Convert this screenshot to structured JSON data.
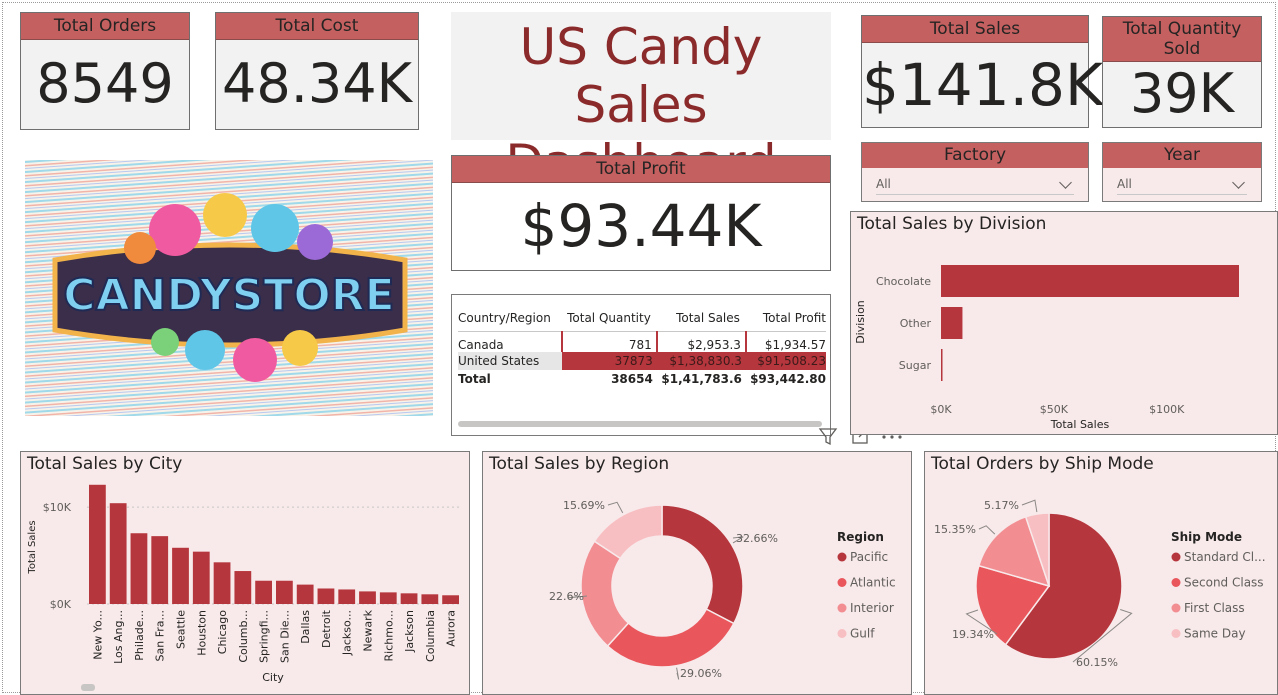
{
  "kpis": {
    "total_orders": {
      "label": "Total Orders",
      "value": "8549"
    },
    "total_cost": {
      "label": "Total Cost",
      "value": "48.34K"
    },
    "total_sales": {
      "label": "Total Sales",
      "value": "$141.8K"
    },
    "total_quantity": {
      "label": "Total Quantity Sold",
      "value": "39K"
    },
    "total_profit": {
      "label": "Total Profit",
      "value": "$93.44K"
    }
  },
  "title": {
    "line1": "US Candy Sales",
    "line2": "Dashboard"
  },
  "logo": {
    "text": "CANDYSTORE"
  },
  "slicers": {
    "factory": {
      "label": "Factory",
      "value": "All"
    },
    "year": {
      "label": "Year",
      "value": "All"
    }
  },
  "matrix": {
    "headers": [
      "Country/Region",
      "Total Quantity",
      "Total Sales",
      "Total Profit"
    ],
    "rows": [
      [
        "Canada",
        "781",
        "$2,953.3",
        "$1,934.57"
      ],
      [
        "United States",
        "37873",
        "$1,38,830.3",
        "$91,508.23"
      ]
    ],
    "total": [
      "Total",
      "38654",
      "$1,41,783.6",
      "$93,442.80"
    ]
  },
  "colors": {
    "dark": "#b5363c",
    "mid": "#e9575c",
    "light": "#f28d92",
    "pale": "#f8bfc2",
    "panel": "#f8e9ea",
    "header": "#c46060"
  },
  "chart_data": [
    {
      "id": "division",
      "type": "bar",
      "orientation": "horizontal",
      "title": "Total Sales by Division",
      "xlabel": "Total Sales",
      "ylabel": "Division",
      "categories": [
        "Chocolate",
        "Other",
        "Sugar"
      ],
      "values": [
        132000,
        9500,
        600
      ],
      "xlim": [
        0,
        132000
      ],
      "ticks": [
        {
          "v": 0,
          "label": "$0K"
        },
        {
          "v": 50000,
          "label": "$50K"
        },
        {
          "v": 100000,
          "label": "$100K"
        }
      ]
    },
    {
      "id": "city",
      "type": "bar",
      "title": "Total Sales by City",
      "xlabel": "City",
      "ylabel": "Total Sales",
      "categories": [
        "New Yo...",
        "Los Ang...",
        "Philade...",
        "San Fra...",
        "Seattle",
        "Houston",
        "Chicago",
        "Columb...",
        "Springfi...",
        "San Die...",
        "Dallas",
        "Detroit",
        "Jackso...",
        "Newark",
        "Richmo...",
        "Jackson",
        "Columbia",
        "Aurora"
      ],
      "values": [
        12300,
        10400,
        7300,
        7000,
        5800,
        5400,
        4300,
        3400,
        2400,
        2400,
        2000,
        1600,
        1500,
        1300,
        1200,
        1100,
        1000,
        900
      ],
      "ylim": [
        0,
        13000
      ],
      "ticks": [
        {
          "v": 0,
          "label": "$0K"
        },
        {
          "v": 10000,
          "label": "$10K"
        }
      ]
    },
    {
      "id": "region",
      "type": "pie",
      "donut": true,
      "title": "Total Sales by Region",
      "legend_title": "Region",
      "labels": [
        "Pacific",
        "Atlantic",
        "Interior",
        "Gulf"
      ],
      "values": [
        32.66,
        29.06,
        22.6,
        15.69
      ],
      "value_labels": [
        "32.66%",
        "29.06%",
        "22.6%",
        "15.69%"
      ],
      "colors": [
        "#b5363c",
        "#e9575c",
        "#f28d92",
        "#f8bfc2"
      ]
    },
    {
      "id": "shipmode",
      "type": "pie",
      "donut": false,
      "title": "Total Orders by Ship Mode",
      "legend_title": "Ship Mode",
      "labels": [
        "Standard Cl...",
        "Second Class",
        "First Class",
        "Same Day"
      ],
      "values": [
        60.15,
        19.34,
        15.35,
        5.17
      ],
      "value_labels": [
        "60.15%",
        "19.34%",
        "15.35%",
        "5.17%"
      ],
      "colors": [
        "#b5363c",
        "#e9575c",
        "#f28d92",
        "#f8bfc2"
      ]
    }
  ]
}
